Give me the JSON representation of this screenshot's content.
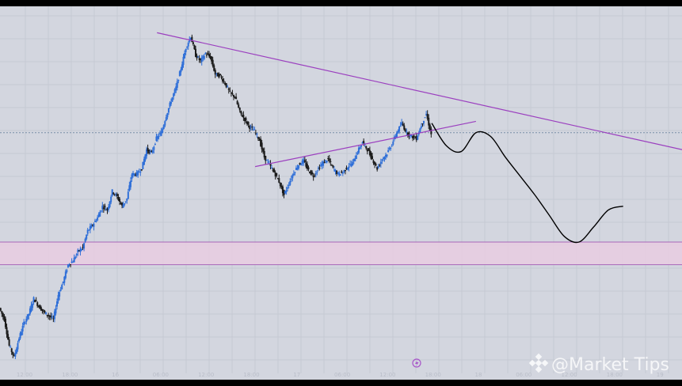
{
  "chart_data": {
    "type": "candlestick",
    "title": "",
    "x_tick_labels": [
      "12:00",
      "18:00",
      "16",
      "06:00",
      "12:00",
      "18:00",
      "17",
      "06:00",
      "12:00",
      "18:00",
      "18",
      "06:00",
      "12:00",
      "18:00",
      "19"
    ],
    "y_tick_labels": [],
    "grid": true,
    "legend": "none",
    "colors": {
      "background": "#d3d6df",
      "grid": "#c6c9d3",
      "up_candle": "#2f6fd8",
      "down_candle": "#1b1b1b",
      "trendline": "#9b3fbf",
      "zone_fill": "#e8cce2",
      "zone_border": "#a866b8",
      "projection": "#000000",
      "price_line": "#7b8fa8"
    },
    "series": [
      {
        "name": "",
        "kind": "close_path",
        "x": [
          0,
          1,
          2,
          3,
          4,
          5,
          6,
          7,
          8,
          9,
          10,
          11,
          12,
          13,
          14,
          15,
          16,
          17,
          18,
          19,
          20,
          21,
          22,
          23,
          24,
          25,
          26,
          27,
          28,
          29,
          30,
          31,
          32,
          33,
          34,
          35,
          36,
          37,
          38,
          39,
          40,
          41,
          42,
          43,
          44,
          45,
          46,
          47,
          48,
          49,
          50,
          51,
          52,
          53,
          54,
          55,
          56,
          57,
          58,
          59,
          60,
          61,
          62,
          63,
          64,
          65,
          66,
          67,
          68,
          69,
          70,
          71,
          72,
          73,
          74,
          75,
          76,
          77,
          78,
          79,
          80,
          81,
          82,
          83,
          84,
          85,
          86,
          87,
          88
        ],
        "y": [
          0.38,
          0.32,
          0.18,
          0.12,
          0.22,
          0.3,
          0.35,
          0.43,
          0.39,
          0.36,
          0.34,
          0.32,
          0.45,
          0.52,
          0.61,
          0.63,
          0.68,
          0.7,
          0.79,
          0.82,
          0.86,
          0.92,
          0.9,
          1.0,
          0.97,
          0.92,
          0.96,
          1.09,
          1.09,
          1.12,
          1.22,
          1.2,
          1.28,
          1.31,
          1.4,
          1.48,
          1.55,
          1.65,
          1.76,
          1.82,
          1.72,
          1.69,
          1.73,
          1.71,
          1.62,
          1.61,
          1.57,
          1.52,
          1.5,
          1.42,
          1.38,
          1.34,
          1.32,
          1.27,
          1.18,
          1.14,
          1.1,
          1.05,
          0.98,
          1.04,
          1.1,
          1.14,
          1.16,
          1.11,
          1.08,
          1.12,
          1.15,
          1.17,
          1.12,
          1.09,
          1.1,
          1.13,
          1.15,
          1.21,
          1.26,
          1.22,
          1.17,
          1.12,
          1.17,
          1.2,
          1.25,
          1.31,
          1.36,
          1.31,
          1.29,
          1.28,
          1.35,
          1.41,
          1.3
        ]
      },
      {
        "name": "",
        "kind": "projection",
        "x": [
          88,
          91,
          94,
          97,
          100,
          103,
          106,
          109,
          112,
          115,
          118,
          121,
          124,
          127
        ],
        "y": [
          1.36,
          1.24,
          1.21,
          1.31,
          1.29,
          1.18,
          1.08,
          0.98,
          0.87,
          0.76,
          0.73,
          0.81,
          0.9,
          0.92
        ]
      }
    ],
    "annotations": [
      {
        "kind": "trendline",
        "label": "descending resistance",
        "x": [
          32,
          139
        ],
        "y": [
          1.84,
          1.22
        ]
      },
      {
        "kind": "trendline",
        "label": "ascending support",
        "x": [
          52,
          97
        ],
        "y": [
          1.13,
          1.37
        ]
      },
      {
        "kind": "zone",
        "label": "support zone",
        "y": [
          0.61,
          0.73
        ]
      },
      {
        "kind": "hline",
        "label": "current price",
        "y": 1.31
      }
    ],
    "ylim": [
      0,
      1.98
    ],
    "xlim": [
      0,
      139
    ]
  },
  "watermark": {
    "logo_icon": "binance-diamond-icon",
    "text": "@Market Tips"
  },
  "marker_icon": "lightning-badge-icon"
}
